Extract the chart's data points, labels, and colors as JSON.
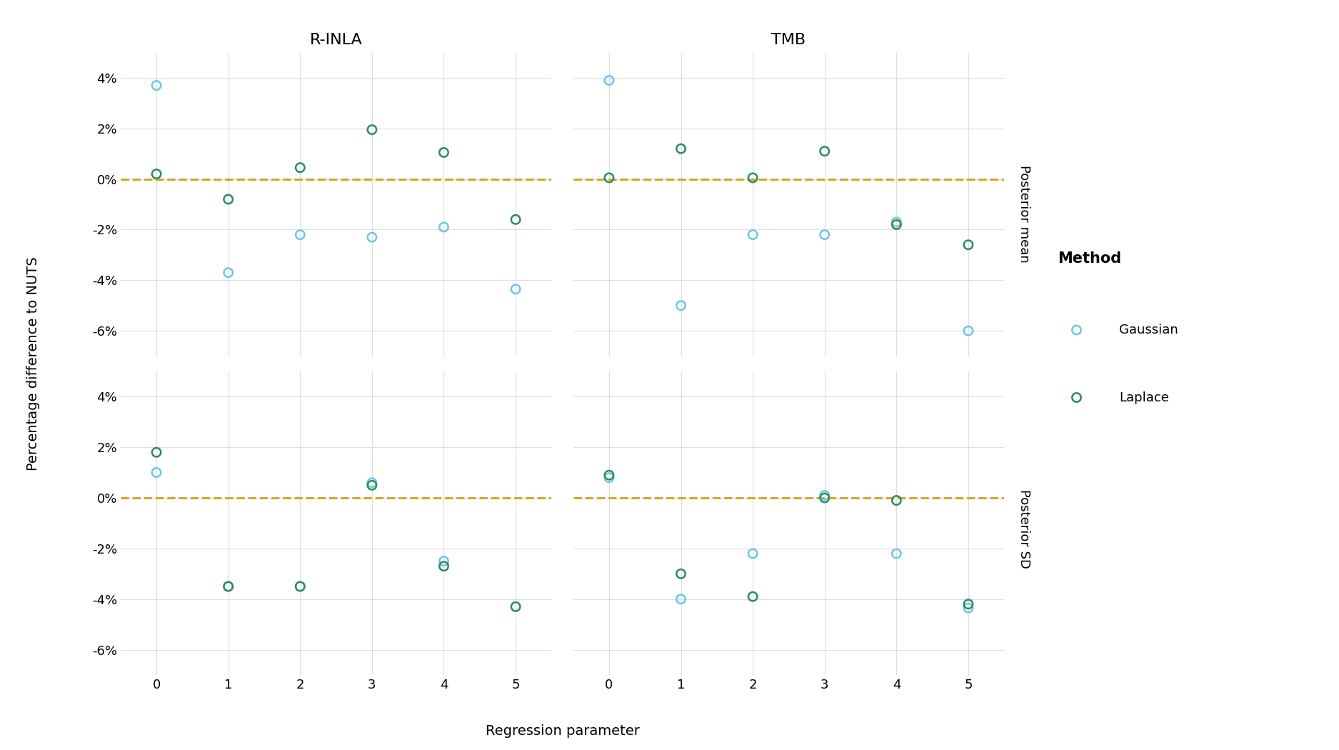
{
  "panels": [
    {
      "col": 0,
      "row": 0,
      "gaussian": [
        3.7,
        -3.7,
        -2.2,
        -2.3,
        -1.9,
        -4.35
      ],
      "laplace": [
        0.2,
        -0.8,
        0.45,
        1.95,
        1.05,
        -1.6
      ]
    },
    {
      "col": 1,
      "row": 0,
      "gaussian": [
        3.9,
        -5.0,
        -2.2,
        -2.2,
        -1.7,
        -6.0
      ],
      "laplace": [
        0.05,
        1.2,
        0.05,
        1.1,
        -1.8,
        -2.6
      ]
    },
    {
      "col": 0,
      "row": 1,
      "gaussian": [
        1.0,
        -3.5,
        -3.5,
        0.6,
        -2.5,
        null
      ],
      "laplace": [
        1.8,
        -3.5,
        -3.5,
        0.5,
        -2.7,
        -4.3
      ]
    },
    {
      "col": 1,
      "row": 1,
      "gaussian": [
        0.8,
        -4.0,
        -2.2,
        0.1,
        -2.2,
        -4.35
      ],
      "laplace": [
        0.9,
        -3.0,
        -3.9,
        0.0,
        -0.1,
        -4.2
      ]
    }
  ],
  "x_values": [
    0,
    1,
    2,
    3,
    4,
    5
  ],
  "gaussian_color": "#6EC6E6",
  "laplace_color": "#2E8B5E",
  "dashed_color": "#DAA520",
  "xlabel": "Regression parameter",
  "ylabel": "Percentage difference to NUTS",
  "ylim": [
    -7,
    5
  ],
  "yticks": [
    -6,
    -4,
    -2,
    0,
    2,
    4
  ],
  "marker_size": 80,
  "marker_linewidth": 1.8,
  "col_titles": [
    "R-INLA",
    "TMB"
  ],
  "row_labels": [
    "Posterior mean",
    "Posterior SD"
  ],
  "legend_title": "Method",
  "legend_entries": [
    "Gaussian",
    "Laplace"
  ],
  "background_color": "#FFFFFF",
  "grid_color": "#DDDDDD"
}
